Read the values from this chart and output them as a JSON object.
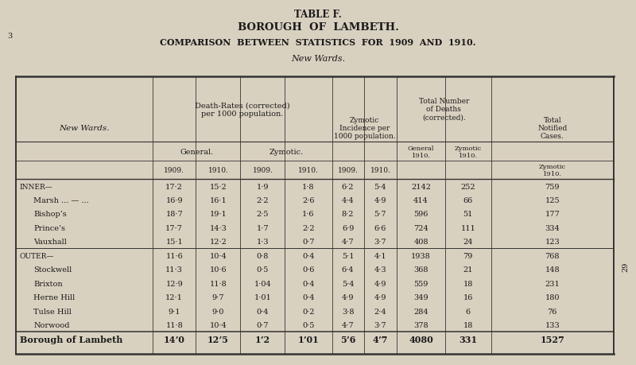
{
  "title_lines": [
    "TABLE F.",
    "BOROUGH  OF  LAMBETH.",
    "COMPARISON  BETWEEN  STATISTICS  FOR  1909  AND  1910.",
    "New Wards."
  ],
  "bg_color": "#d9d1c0",
  "text_color": "#1a1a1a",
  "line_color": "#333333",
  "side_number": "29",
  "rows": [
    {
      "label": "Inner—",
      "indent": 0,
      "bold": false,
      "smallcaps": true,
      "data": [
        "17·2",
        "15·2",
        "1·9",
        "1·8",
        "6·2",
        "5·4",
        "2142",
        "252",
        "759"
      ]
    },
    {
      "label": "Marsh ... — ...",
      "indent": 1,
      "bold": false,
      "smallcaps": false,
      "data": [
        "16·9",
        "16·1",
        "2·2",
        "2·6",
        "4·4",
        "4·9",
        "414",
        "66",
        "125"
      ]
    },
    {
      "label": "Bishop’s",
      "indent": 1,
      "bold": false,
      "smallcaps": false,
      "data": [
        "18·7",
        "19·1",
        "2·5",
        "1·6",
        "8·2",
        "5·7",
        "596",
        "51",
        "177"
      ]
    },
    {
      "label": "Prince’s",
      "indent": 1,
      "bold": false,
      "smallcaps": false,
      "data": [
        "17·7",
        "14·3",
        "1·7",
        "2·2",
        "6·9",
        "6·6",
        "724",
        "111",
        "334"
      ]
    },
    {
      "label": "Vauxhall",
      "indent": 1,
      "bold": false,
      "smallcaps": false,
      "data": [
        "15·1",
        "12·2",
        "1·3",
        "0·7",
        "4·7",
        "3·7",
        "408",
        "24",
        "123"
      ]
    },
    {
      "label": "Outer—",
      "indent": 0,
      "bold": false,
      "smallcaps": true,
      "data": [
        "11·6",
        "10·4",
        "0·8",
        "0·4",
        "5·1",
        "4·1",
        "1938",
        "79",
        "768"
      ]
    },
    {
      "label": "Stockwell",
      "indent": 1,
      "bold": false,
      "smallcaps": false,
      "data": [
        "11·3",
        "10·6",
        "0·5",
        "0·6",
        "6·4",
        "4·3",
        "368",
        "21",
        "148"
      ]
    },
    {
      "label": "Brixton",
      "indent": 1,
      "bold": false,
      "smallcaps": false,
      "data": [
        "12·9",
        "11·8",
        "1·04",
        "0·4",
        "5·4",
        "4·9",
        "559",
        "18",
        "231"
      ]
    },
    {
      "label": "Herne Hill",
      "indent": 1,
      "bold": false,
      "smallcaps": false,
      "data": [
        "12·1",
        "9·7",
        "1·01",
        "0·4",
        "4·9",
        "4·9",
        "349",
        "16",
        "180"
      ]
    },
    {
      "label": "Tulse Hill",
      "indent": 1,
      "bold": false,
      "smallcaps": false,
      "data": [
        "9·1",
        "9·0",
        "0·4",
        "0·2",
        "3·8",
        "2·4",
        "284",
        "6",
        "76"
      ]
    },
    {
      "label": "Norwood",
      "indent": 1,
      "bold": false,
      "smallcaps": false,
      "data": [
        "11·8",
        "10·4",
        "0·7",
        "0·5",
        "4·7",
        "3·7",
        "378",
        "18",
        "133"
      ]
    },
    {
      "label": "Borough of Lambeth",
      "indent": 0,
      "bold": true,
      "smallcaps": false,
      "data": [
        "14ʼ0",
        "12ʼ5",
        "1ʼ2",
        "1ʼ01",
        "5ʼ6",
        "4ʼ7",
        "4080",
        "331",
        "1527"
      ]
    }
  ]
}
